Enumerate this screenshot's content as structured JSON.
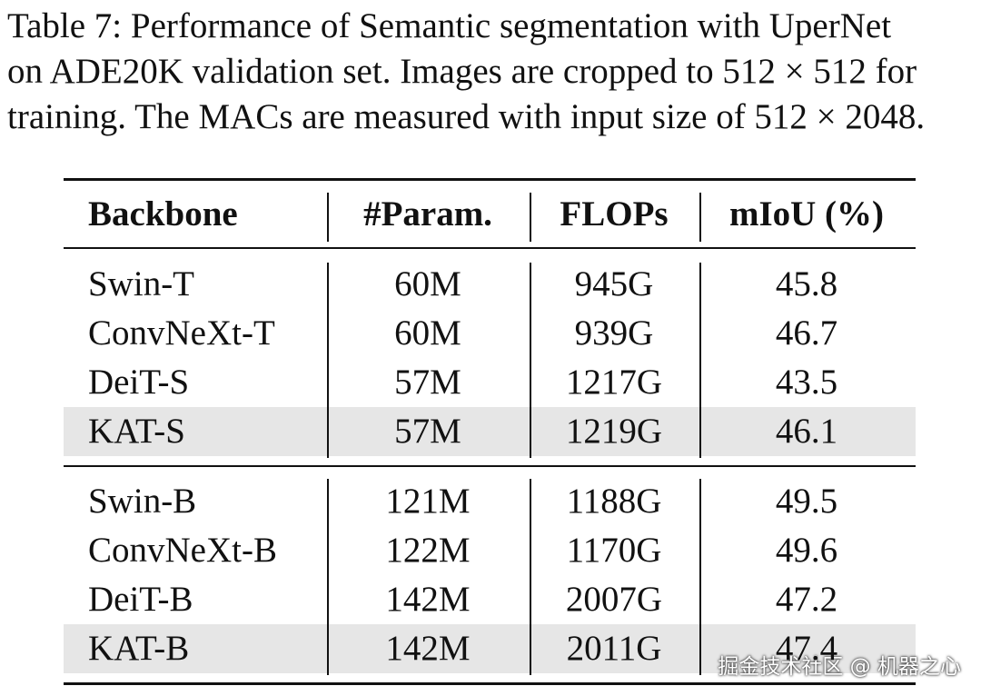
{
  "caption_lines": [
    "Table 7: Performance of Semantic segmentation with UperNet",
    "on ADE20K validation set. Images are cropped to 512 × 512 for",
    "training. The MACs are measured with input size of 512 × 2048."
  ],
  "table": {
    "header": [
      "Backbone",
      "#Param.",
      "FLOPs",
      "mIoU (%)"
    ],
    "groups": [
      [
        [
          "Swin-T",
          "60M",
          "945G",
          "45.8"
        ],
        [
          "ConvNeXt-T",
          "60M",
          "939G",
          "46.7"
        ],
        [
          "DeiT-S",
          "57M",
          "1217G",
          "43.5"
        ],
        [
          "KAT-S",
          "57M",
          "1219G",
          "46.1"
        ]
      ],
      [
        [
          "Swin-B",
          "121M",
          "1188G",
          "49.5"
        ],
        [
          "ConvNeXt-B",
          "122M",
          "1170G",
          "49.6"
        ],
        [
          "DeiT-B",
          "142M",
          "2007G",
          "47.2"
        ],
        [
          "KAT-B",
          "142M",
          "2011G",
          "47.4"
        ]
      ]
    ]
  },
  "watermark": "掘金技术社区 @ 机器之心"
}
